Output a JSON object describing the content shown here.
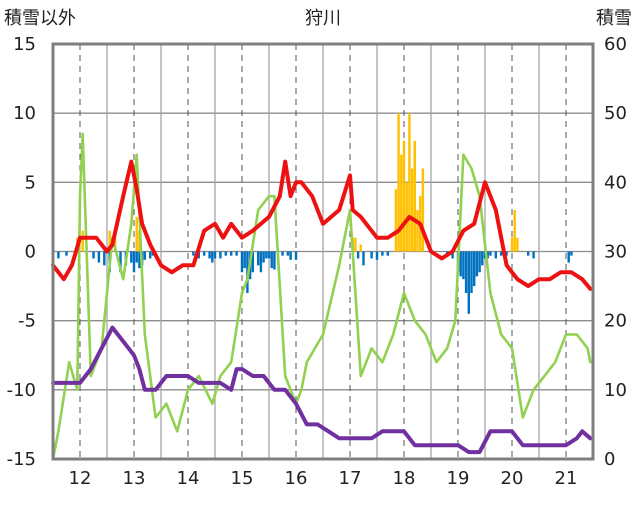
{
  "chart_data": {
    "type": "line",
    "title": "狩川",
    "ylabel_left": "積雪以外",
    "ylabel_right": "積雪",
    "ylim_left": [
      -15,
      15
    ],
    "ylim_right": [
      0,
      60
    ],
    "xlim": [
      11.5,
      21.5
    ],
    "x_ticks": [
      12,
      13,
      14,
      15,
      16,
      17,
      18,
      19,
      20,
      21
    ],
    "x_tick_labels": [
      "12",
      "13",
      "14",
      "15",
      "16",
      "17",
      "18",
      "19",
      "20",
      "21"
    ],
    "y_left_ticks": [
      15,
      10,
      5,
      0,
      -5,
      -10,
      -15
    ],
    "y_left_tick_labels": [
      "15",
      "10",
      "5",
      "0",
      "-5",
      "-10",
      "-15"
    ],
    "y_right_ticks": [
      60,
      50,
      40,
      30,
      20,
      10,
      0
    ],
    "y_right_tick_labels": [
      "60",
      "50",
      "40",
      "30",
      "20",
      "10",
      "0"
    ],
    "grid": true,
    "colors": {
      "red": "#ee1111",
      "green": "#92d050",
      "purple": "#7030a0",
      "orange": "#ffc000",
      "blue": "#0070c0"
    },
    "series": [
      {
        "color": "red",
        "kind": "line",
        "axis": "left",
        "x": [
          11.5,
          11.7,
          11.85,
          12.0,
          12.3,
          12.5,
          12.6,
          12.8,
          12.95,
          13.05,
          13.15,
          13.3,
          13.5,
          13.7,
          13.9,
          14.1,
          14.3,
          14.5,
          14.65,
          14.8,
          15.0,
          15.2,
          15.5,
          15.7,
          15.8,
          15.9,
          16.0,
          16.1,
          16.3,
          16.5,
          16.8,
          17.0,
          17.05,
          17.2,
          17.5,
          17.7,
          17.9,
          18.1,
          18.3,
          18.5,
          18.7,
          18.9,
          19.1,
          19.3,
          19.5,
          19.7,
          19.9,
          20.1,
          20.3,
          20.5,
          20.7,
          20.9,
          21.1,
          21.3,
          21.45
        ],
        "y": [
          -1,
          -2,
          -1,
          1,
          1,
          0,
          0.5,
          4,
          6.5,
          4.5,
          2,
          0.5,
          -1,
          -1.5,
          -1,
          -1,
          1.5,
          2,
          1,
          2,
          1,
          1.5,
          2.5,
          4,
          6.5,
          4,
          5,
          5,
          4,
          2,
          3,
          5.5,
          3,
          2.5,
          1,
          1,
          1.5,
          2.5,
          2,
          0,
          -0.5,
          0,
          1.5,
          2,
          5,
          3,
          -1,
          -2,
          -2.5,
          -2,
          -2,
          -1.5,
          -1.5,
          -2,
          -2.7
        ]
      },
      {
        "color": "green",
        "kind": "line",
        "axis": "left",
        "x": [
          11.5,
          11.6,
          11.8,
          11.95,
          12.0,
          12.05,
          12.2,
          12.4,
          12.6,
          12.8,
          12.95,
          13.05,
          13.2,
          13.4,
          13.6,
          13.8,
          14.0,
          14.2,
          14.45,
          14.6,
          14.8,
          15.0,
          15.1,
          15.3,
          15.5,
          15.6,
          15.8,
          16.0,
          16.1,
          16.2,
          16.5,
          16.8,
          17.0,
          17.2,
          17.4,
          17.6,
          17.8,
          18.0,
          18.2,
          18.4,
          18.6,
          18.8,
          18.95,
          19.1,
          19.25,
          19.4,
          19.6,
          19.8,
          20.0,
          20.2,
          20.4,
          20.6,
          20.8,
          21.0,
          21.2,
          21.4,
          21.45
        ],
        "y": [
          -15,
          -13,
          -8,
          -10,
          4,
          8.5,
          -9,
          -7,
          1,
          -2,
          2,
          7,
          -6,
          -12,
          -11,
          -13,
          -10,
          -9,
          -11,
          -9,
          -8,
          -3,
          -2,
          3,
          4,
          4,
          -9,
          -11,
          -10,
          -8,
          -6,
          -1,
          3,
          -9,
          -7,
          -8,
          -6,
          -3,
          -5,
          -6,
          -8,
          -7,
          -5,
          7,
          6,
          4,
          -3,
          -6,
          -7,
          -12,
          -10,
          -9,
          -8,
          -6,
          -6,
          -7,
          -8
        ]
      },
      {
        "color": "purple",
        "kind": "line",
        "axis": "left",
        "x": [
          11.5,
          11.8,
          12.0,
          12.2,
          12.4,
          12.6,
          12.8,
          12.9,
          13.0,
          13.1,
          13.2,
          13.4,
          13.6,
          13.8,
          14.0,
          14.2,
          14.4,
          14.6,
          14.8,
          14.9,
          15.0,
          15.2,
          15.4,
          15.6,
          15.8,
          16.0,
          16.2,
          16.4,
          16.6,
          16.8,
          17.0,
          17.2,
          17.4,
          17.6,
          17.8,
          18.0,
          18.2,
          18.4,
          18.6,
          18.8,
          19.0,
          19.2,
          19.4,
          19.6,
          19.8,
          20.0,
          20.2,
          20.4,
          20.6,
          20.8,
          21.0,
          21.2,
          21.3,
          21.45
        ],
        "y": [
          -9.5,
          -9.5,
          -9.5,
          -8.5,
          -7,
          -5.5,
          -6.5,
          -7,
          -7.5,
          -8.5,
          -10,
          -10,
          -9,
          -9,
          -9,
          -9.5,
          -9.5,
          -9.5,
          -10,
          -8.5,
          -8.5,
          -9,
          -9,
          -10,
          -10,
          -11,
          -12.5,
          -12.5,
          -13,
          -13.5,
          -13.5,
          -13.5,
          -13.5,
          -13,
          -13,
          -13,
          -14,
          -14,
          -14,
          -14,
          -14,
          -14.5,
          -14.5,
          -13,
          -13,
          -13,
          -14,
          -14,
          -14,
          -14,
          -14,
          -13.5,
          -13,
          -13.5
        ]
      },
      {
        "color": "orange",
        "kind": "bar",
        "axis": "left",
        "name": "",
        "x": [
          11.95,
          12.05,
          12.55,
          12.65,
          13.05,
          13.1,
          17.05,
          17.1,
          17.2,
          17.85,
          17.9,
          17.95,
          18.0,
          18.05,
          18.1,
          18.15,
          18.2,
          18.25,
          18.3,
          18.35,
          20.0,
          20.05,
          20.1
        ],
        "y": [
          1,
          1.5,
          1.5,
          1,
          2.5,
          1.5,
          1,
          1,
          0.5,
          4.5,
          10,
          7,
          8,
          5,
          10,
          6,
          8,
          3,
          4,
          6,
          1,
          3,
          1
        ]
      },
      {
        "color": "blue",
        "kind": "bar",
        "axis": "left",
        "name": "",
        "x": [
          11.6,
          11.75,
          12.25,
          12.35,
          12.45,
          12.55,
          12.75,
          12.85,
          12.95,
          13.0,
          13.05,
          13.1,
          13.15,
          13.2,
          13.3,
          13.35,
          14.1,
          14.2,
          14.3,
          14.4,
          14.45,
          14.5,
          14.6,
          14.7,
          14.8,
          14.9,
          15.0,
          15.05,
          15.1,
          15.15,
          15.2,
          15.3,
          15.35,
          15.4,
          15.45,
          15.5,
          15.55,
          15.6,
          15.75,
          15.85,
          15.9,
          16.0,
          17.15,
          17.25,
          17.4,
          17.5,
          17.6,
          17.7,
          18.8,
          18.9,
          19.0,
          19.05,
          19.1,
          19.15,
          19.2,
          19.25,
          19.3,
          19.35,
          19.4,
          19.45,
          19.5,
          19.55,
          19.6,
          19.7,
          19.8,
          19.9,
          20.3,
          20.4,
          21.05,
          21.1
        ],
        "y": [
          -0.5,
          -0.3,
          -0.5,
          -0.8,
          -1,
          -1.5,
          -1.5,
          -1,
          -0.8,
          -1.5,
          -0.8,
          -1.2,
          -1,
          -0.6,
          -0.5,
          -0.3,
          -0.3,
          -0.5,
          -0.3,
          -0.5,
          -0.8,
          -0.5,
          -0.5,
          -0.3,
          -0.3,
          -0.3,
          -1.5,
          -1.2,
          -3,
          -2,
          -1.5,
          -1,
          -1.5,
          -0.8,
          -0.5,
          -0.5,
          -1.2,
          -1.3,
          -0.3,
          -0.3,
          -0.6,
          -0.6,
          -0.5,
          -1,
          -0.5,
          -0.6,
          -0.3,
          -0.3,
          -0.3,
          -0.5,
          -1.5,
          -1.8,
          -2,
          -3,
          -4.5,
          -3,
          -2.5,
          -1.8,
          -1.5,
          -1,
          -0.5,
          -0.5,
          -0.3,
          -0.5,
          -0.3,
          -0.3,
          -0.3,
          -0.5,
          -0.8,
          -0.3
        ]
      }
    ]
  }
}
